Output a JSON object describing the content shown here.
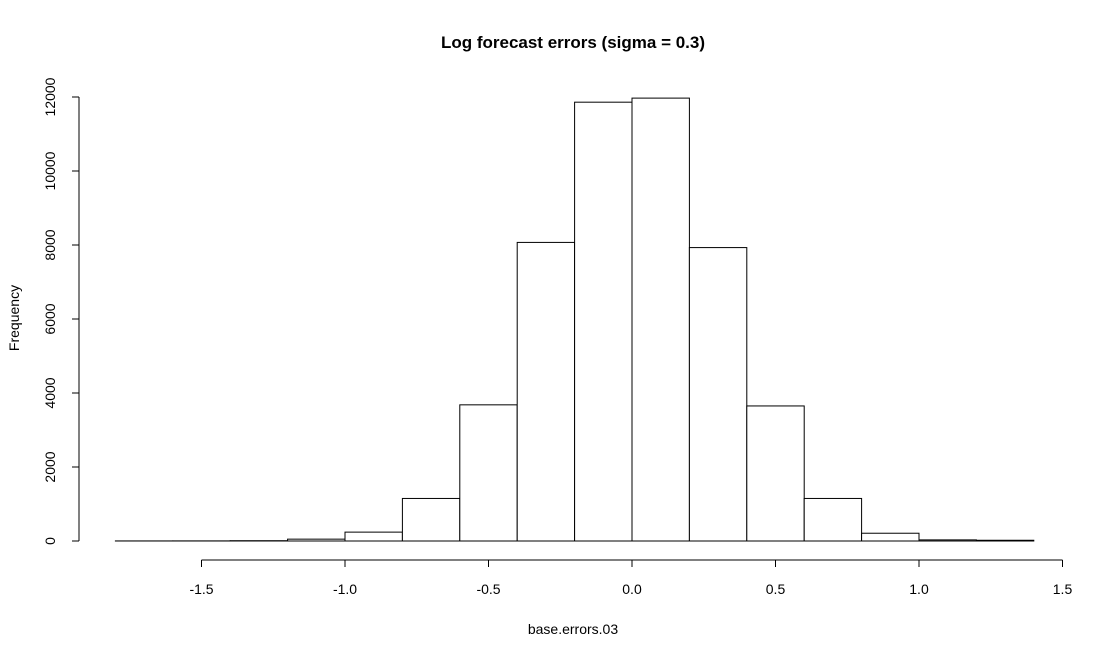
{
  "chart_data": {
    "type": "bar",
    "title": "Log forecast errors (sigma = 0.3)",
    "xlabel": "base.errors.03",
    "ylabel": "Frequency",
    "xlim": [
      -1.8,
      1.4
    ],
    "ylim": [
      0,
      12000
    ],
    "x_ticks": [
      "-1.5",
      "-1.0",
      "-0.5",
      "0.0",
      "0.5",
      "1.0",
      "1.5"
    ],
    "y_ticks": [
      "0",
      "2000",
      "4000",
      "6000",
      "8000",
      "10000",
      "12000"
    ],
    "grid": false,
    "bins": [
      {
        "from": -1.8,
        "to": -1.6,
        "count": 2
      },
      {
        "from": -1.6,
        "to": -1.4,
        "count": 3
      },
      {
        "from": -1.4,
        "to": -1.2,
        "count": 8
      },
      {
        "from": -1.2,
        "to": -1.0,
        "count": 50
      },
      {
        "from": -1.0,
        "to": -0.8,
        "count": 240
      },
      {
        "from": -0.8,
        "to": -0.6,
        "count": 1150
      },
      {
        "from": -0.6,
        "to": -0.4,
        "count": 3680
      },
      {
        "from": -0.4,
        "to": -0.2,
        "count": 8070
      },
      {
        "from": -0.2,
        "to": 0.0,
        "count": 11860
      },
      {
        "from": 0.0,
        "to": 0.2,
        "count": 11970
      },
      {
        "from": 0.2,
        "to": 0.4,
        "count": 7930
      },
      {
        "from": 0.4,
        "to": 0.6,
        "count": 3650
      },
      {
        "from": 0.6,
        "to": 0.8,
        "count": 1150
      },
      {
        "from": 0.8,
        "to": 1.0,
        "count": 210
      },
      {
        "from": 1.0,
        "to": 1.2,
        "count": 30
      },
      {
        "from": 1.2,
        "to": 1.4,
        "count": 20
      }
    ]
  }
}
